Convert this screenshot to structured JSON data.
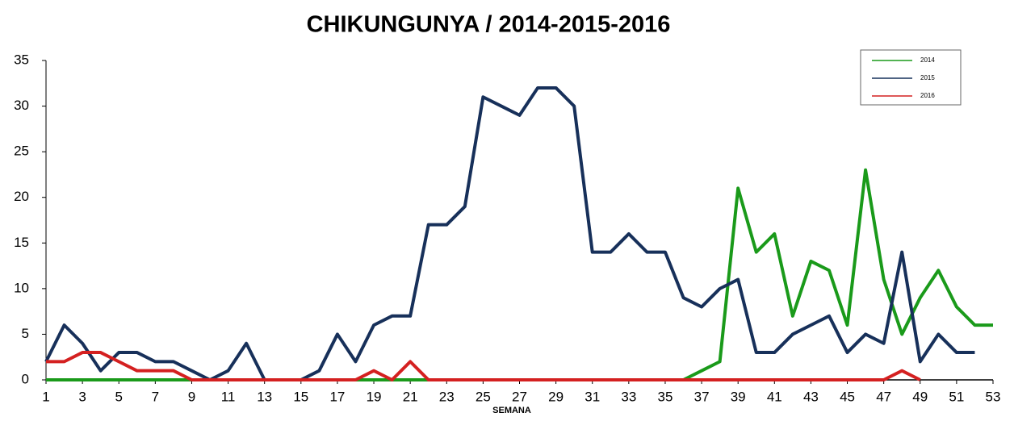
{
  "chart_data": {
    "type": "line",
    "title": "CHIKUNGUNYA / 2014-2015-2016",
    "x_label": "SEMANA",
    "x": [
      1,
      2,
      3,
      4,
      5,
      6,
      7,
      8,
      9,
      10,
      11,
      12,
      13,
      14,
      15,
      16,
      17,
      18,
      19,
      20,
      21,
      22,
      23,
      24,
      25,
      26,
      27,
      28,
      29,
      30,
      31,
      32,
      33,
      34,
      35,
      36,
      37,
      38,
      39,
      40,
      41,
      42,
      43,
      44,
      45,
      46,
      47,
      48,
      49,
      50,
      51,
      52,
      53
    ],
    "xlim": [
      1,
      53
    ],
    "xticks": [
      1,
      3,
      5,
      7,
      9,
      11,
      13,
      15,
      17,
      19,
      21,
      23,
      25,
      27,
      29,
      31,
      33,
      35,
      37,
      39,
      41,
      43,
      45,
      47,
      49,
      51,
      53
    ],
    "ylim": [
      0,
      35
    ],
    "yticks": [
      0,
      5,
      10,
      15,
      20,
      25,
      30,
      35
    ],
    "grid": false,
    "legend": "upper right",
    "series": [
      {
        "name": "2014",
        "color": "#1a9a1a",
        "values": [
          0,
          0,
          0,
          0,
          0,
          0,
          0,
          0,
          0,
          0,
          0,
          0,
          0,
          0,
          0,
          0,
          0,
          0,
          0,
          0,
          0,
          0,
          0,
          0,
          0,
          0,
          0,
          0,
          0,
          0,
          0,
          0,
          0,
          0,
          0,
          0,
          1,
          2,
          21,
          14,
          16,
          7,
          13,
          12,
          6,
          23,
          11,
          5,
          9,
          12,
          8,
          6,
          6
        ]
      },
      {
        "name": "2015",
        "color": "#17305a",
        "values": [
          2,
          6,
          4,
          1,
          3,
          3,
          2,
          2,
          1,
          0,
          1,
          4,
          0,
          0,
          0,
          1,
          5,
          2,
          6,
          7,
          7,
          17,
          17,
          19,
          31,
          30,
          29,
          32,
          32,
          30,
          14,
          14,
          16,
          14,
          14,
          9,
          8,
          10,
          11,
          3,
          3,
          5,
          6,
          7,
          3,
          5,
          4,
          14,
          2,
          5,
          3,
          3,
          null
        ]
      },
      {
        "name": "2016",
        "color": "#d42020",
        "values": [
          2,
          2,
          3,
          3,
          2,
          1,
          1,
          1,
          0,
          0,
          0,
          0,
          0,
          0,
          0,
          0,
          0,
          0,
          1,
          0,
          2,
          0,
          0,
          0,
          0,
          0,
          0,
          0,
          0,
          0,
          0,
          0,
          0,
          0,
          0,
          0,
          0,
          0,
          0,
          0,
          0,
          0,
          0,
          0,
          0,
          0,
          0,
          1,
          0,
          null,
          null,
          null,
          null
        ]
      }
    ]
  }
}
